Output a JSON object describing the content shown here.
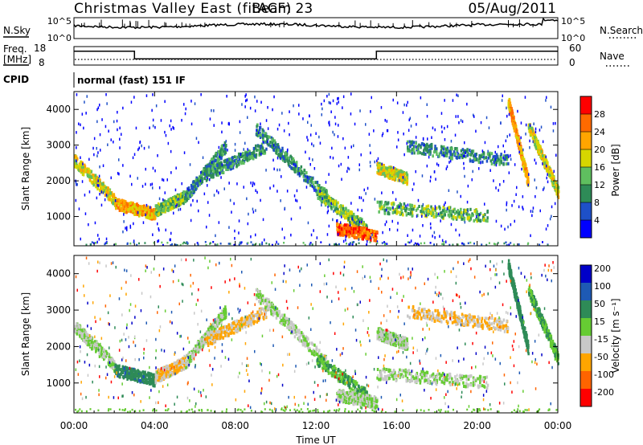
{
  "header": {
    "radar": "Christmas Valley East (fitACF)",
    "beam": "Beam 23",
    "date": "05/Aug/2011"
  },
  "noise_panel": {
    "left_label": "N.Sky",
    "right_label": "N.Search",
    "left_ticks": [
      "10^5",
      "10^0"
    ],
    "right_ticks": [
      "10^5",
      "10^0"
    ]
  },
  "freq_panel": {
    "left_label_1": "Freq.",
    "left_label_2": "[MHz]",
    "right_label": "Nave",
    "left_ticks": [
      "18",
      "8"
    ],
    "right_ticks": [
      "60",
      "0"
    ],
    "freq_step_mhz": [
      {
        "t": 0.0,
        "v": 15
      },
      {
        "t": 3.0,
        "v": 15
      },
      {
        "t": 3.0,
        "v": 10
      },
      {
        "t": 15.0,
        "v": 10
      },
      {
        "t": 15.0,
        "v": 15
      },
      {
        "t": 24.0,
        "v": 15
      }
    ]
  },
  "cpid": {
    "label": "CPID",
    "mode": "normal (fast) 151 IF"
  },
  "chart_data": [
    {
      "type": "heatmap",
      "name": "power",
      "ylabel": "Slant Range [km]",
      "ylim": [
        180,
        4500
      ],
      "yticks": [
        "1000",
        "2000",
        "3000",
        "4000"
      ],
      "colorbar_label": "Power [dB]",
      "colorbar_ticks": [
        "4",
        "8",
        "12",
        "16",
        "20",
        "24",
        "28"
      ],
      "colorbar_colors": [
        "#0000ff",
        "#1e50c8",
        "#2e8b57",
        "#5fbf5f",
        "#d6d600",
        "#ffa500",
        "#ff6a00",
        "#ff0000"
      ],
      "echo_bands": [
        {
          "t0": 0.0,
          "r0": 2600,
          "t1": 2.0,
          "r1": 1500,
          "level": 16
        },
        {
          "t0": 2.0,
          "r0": 1400,
          "t1": 4.0,
          "r1": 1100,
          "level": 20
        },
        {
          "t0": 4.0,
          "r0": 1200,
          "t1": 5.5,
          "r1": 1600,
          "level": 12
        },
        {
          "t0": 5.5,
          "r0": 1600,
          "t1": 7.5,
          "r1": 3000,
          "level": 8
        },
        {
          "t0": 6.5,
          "r0": 2200,
          "t1": 9.5,
          "r1": 3000,
          "level": 8
        },
        {
          "t0": 9.0,
          "r0": 3500,
          "t1": 12.5,
          "r1": 1600,
          "level": 8
        },
        {
          "t0": 12.0,
          "r0": 1700,
          "t1": 14.5,
          "r1": 700,
          "level": 12
        },
        {
          "t0": 13.0,
          "r0": 700,
          "t1": 15.0,
          "r1": 500,
          "level": 24
        },
        {
          "t0": 15.0,
          "r0": 1300,
          "t1": 20.5,
          "r1": 1050,
          "level": 12
        },
        {
          "t0": 15.0,
          "r0": 2400,
          "t1": 16.5,
          "r1": 2100,
          "level": 16
        },
        {
          "t0": 16.5,
          "r0": 3000,
          "t1": 21.5,
          "r1": 2600,
          "level": 8
        },
        {
          "t0": 21.5,
          "r0": 4300,
          "t1": 22.5,
          "r1": 2000,
          "level": 20
        },
        {
          "t0": 22.5,
          "r0": 3600,
          "t1": 24.0,
          "r1": 1700,
          "level": 16
        }
      ]
    },
    {
      "type": "heatmap",
      "name": "velocity",
      "ylabel": "Slant Range [km]",
      "ylim": [
        180,
        4500
      ],
      "yticks": [
        "1000",
        "2000",
        "3000",
        "4000"
      ],
      "xlabel": "Time UT",
      "xlim": [
        0,
        24
      ],
      "xticks": [
        "00:00",
        "04:00",
        "08:00",
        "12:00",
        "16:00",
        "20:00",
        "00:00"
      ],
      "colorbar_label": "Velocity [m s⁻¹]",
      "colorbar_ticks": [
        "200",
        "100",
        "50",
        "15",
        "-15",
        "-50",
        "-100",
        "-200"
      ],
      "colorbar_colors": [
        "#0000c8",
        "#1e5ab4",
        "#2e8b57",
        "#66cc33",
        "#c8c8c8",
        "#ffa500",
        "#ff6400",
        "#ff0000"
      ],
      "echo_bands": [
        {
          "t0": 0.0,
          "r0": 2600,
          "t1": 2.0,
          "r1": 1500,
          "level": 0
        },
        {
          "t0": 2.0,
          "r0": 1400,
          "t1": 4.0,
          "r1": 1100,
          "level": 60
        },
        {
          "t0": 4.0,
          "r0": 1200,
          "t1": 5.5,
          "r1": 1600,
          "level": -30
        },
        {
          "t0": 5.5,
          "r0": 1600,
          "t1": 7.5,
          "r1": 3000,
          "level": 0
        },
        {
          "t0": 6.5,
          "r0": 2200,
          "t1": 9.5,
          "r1": 3000,
          "level": -30
        },
        {
          "t0": 9.0,
          "r0": 3500,
          "t1": 12.5,
          "r1": 1600,
          "level": 0
        },
        {
          "t0": 12.0,
          "r0": 1700,
          "t1": 14.5,
          "r1": 700,
          "level": 30
        },
        {
          "t0": 13.0,
          "r0": 700,
          "t1": 15.0,
          "r1": 500,
          "level": 0
        },
        {
          "t0": 15.0,
          "r0": 1300,
          "t1": 20.5,
          "r1": 1050,
          "level": 0
        },
        {
          "t0": 15.0,
          "r0": 2400,
          "t1": 16.5,
          "r1": 2100,
          "level": 0
        },
        {
          "t0": 16.5,
          "r0": 3000,
          "t1": 21.5,
          "r1": 2600,
          "level": -30
        },
        {
          "t0": 21.5,
          "r0": 4300,
          "t1": 22.5,
          "r1": 2000,
          "level": 50
        },
        {
          "t0": 22.5,
          "r0": 3600,
          "t1": 24.0,
          "r1": 1700,
          "level": 30
        }
      ]
    }
  ]
}
